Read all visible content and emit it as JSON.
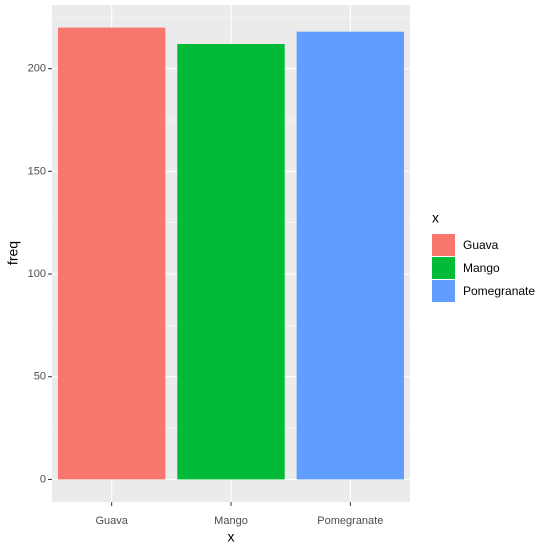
{
  "chart_data": {
    "type": "bar",
    "xlabel": "x",
    "ylabel": "freq",
    "legend_title": "x",
    "categories": [
      "Guava",
      "Mango",
      "Pomegranate"
    ],
    "values": [
      220,
      212,
      218
    ],
    "colors": [
      "#F8766D",
      "#00BA38",
      "#619CFF"
    ],
    "ylim": [
      -11,
      231
    ],
    "yticks": [
      0,
      50,
      100,
      150,
      200
    ],
    "minor_yticks": [
      25,
      75,
      125,
      175,
      225
    ],
    "grid": true,
    "legend": "right"
  }
}
